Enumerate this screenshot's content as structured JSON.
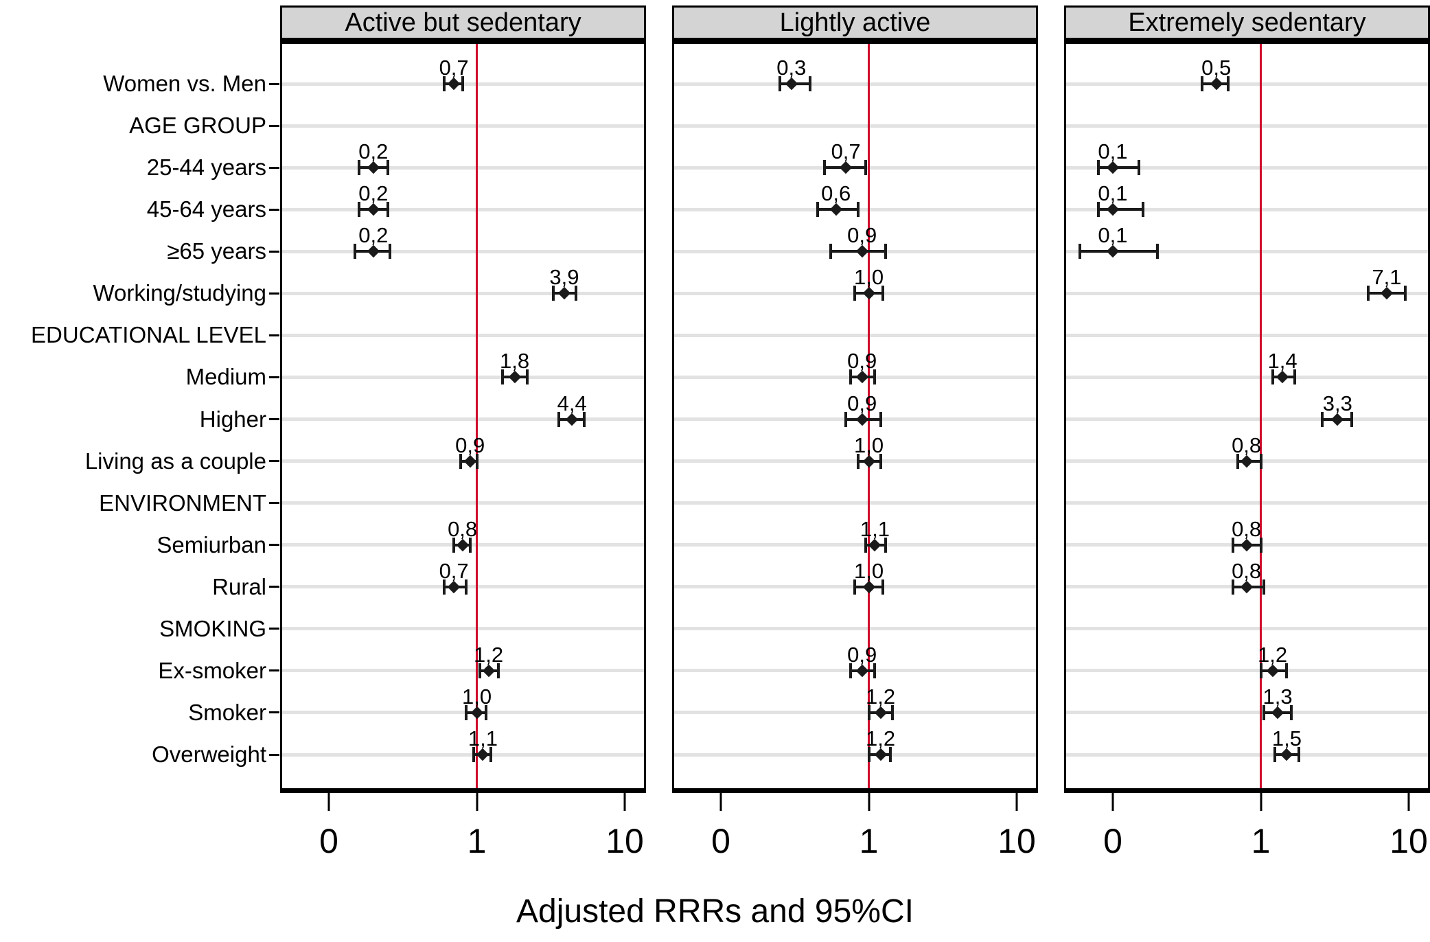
{
  "chart_data": {
    "type": "forest",
    "title": "",
    "xlabel": "Adjusted RRRs and 95%CI",
    "x_scale": "log",
    "x_ticks": [
      "0",
      "1",
      "10"
    ],
    "x_tick_values": [
      0.1,
      1,
      10
    ],
    "x_range_displayed": [
      0.05,
      13
    ],
    "reference_line": 1,
    "grid": "horizontal",
    "decimal_separator": "comma",
    "categories": [
      {
        "label": "Women vs. Men",
        "section_header": false
      },
      {
        "label": "AGE GROUP",
        "section_header": true
      },
      {
        "label": "25-44 years",
        "section_header": false
      },
      {
        "label": "45-64 years",
        "section_header": false
      },
      {
        "label": "≥65 years",
        "section_header": false
      },
      {
        "label": "Working/studying",
        "section_header": false
      },
      {
        "label": "EDUCATIONAL LEVEL",
        "section_header": true
      },
      {
        "label": "Medium",
        "section_header": false
      },
      {
        "label": "Higher",
        "section_header": false
      },
      {
        "label": "Living as a couple",
        "section_header": false
      },
      {
        "label": "ENVIRONMENT",
        "section_header": true
      },
      {
        "label": "Semiurban",
        "section_header": false
      },
      {
        "label": "Rural",
        "section_header": false
      },
      {
        "label": "SMOKING",
        "section_header": true
      },
      {
        "label": "Ex-smoker",
        "section_header": false
      },
      {
        "label": "Smoker",
        "section_header": false
      },
      {
        "label": "Overweight",
        "section_header": false
      }
    ],
    "panels": [
      {
        "title": "Active but sedentary",
        "points": [
          {
            "rrr": 0.7,
            "label": "0,7",
            "ci": [
              0.6,
              0.8
            ]
          },
          null,
          {
            "rrr": 0.2,
            "label": "0,2",
            "ci": [
              0.16,
              0.25
            ]
          },
          {
            "rrr": 0.2,
            "label": "0,2",
            "ci": [
              0.16,
              0.25
            ]
          },
          {
            "rrr": 0.2,
            "label": "0,2",
            "ci": [
              0.15,
              0.26
            ]
          },
          {
            "rrr": 3.9,
            "label": "3,9",
            "ci": [
              3.3,
              4.7
            ]
          },
          null,
          {
            "rrr": 1.8,
            "label": "1,8",
            "ci": [
              1.5,
              2.2
            ]
          },
          {
            "rrr": 4.4,
            "label": "4,4",
            "ci": [
              3.6,
              5.3
            ]
          },
          {
            "rrr": 0.9,
            "label": "0,9",
            "ci": [
              0.78,
              1.0
            ]
          },
          null,
          {
            "rrr": 0.8,
            "label": "0,8",
            "ci": [
              0.7,
              0.9
            ]
          },
          {
            "rrr": 0.7,
            "label": "0,7",
            "ci": [
              0.6,
              0.85
            ]
          },
          null,
          {
            "rrr": 1.2,
            "label": "1,2",
            "ci": [
              1.05,
              1.4
            ]
          },
          {
            "rrr": 1.0,
            "label": "1,0",
            "ci": [
              0.85,
              1.15
            ]
          },
          {
            "rrr": 1.1,
            "label": "1,1",
            "ci": [
              0.95,
              1.25
            ]
          }
        ]
      },
      {
        "title": "Lightly active",
        "points": [
          {
            "rrr": 0.3,
            "label": "0,3",
            "ci": [
              0.25,
              0.4
            ]
          },
          null,
          {
            "rrr": 0.7,
            "label": "0,7",
            "ci": [
              0.5,
              0.95
            ]
          },
          {
            "rrr": 0.6,
            "label": "0,6",
            "ci": [
              0.45,
              0.85
            ]
          },
          {
            "rrr": 0.9,
            "label": "0,9",
            "ci": [
              0.55,
              1.3
            ]
          },
          {
            "rrr": 1.0,
            "label": "1,0",
            "ci": [
              0.8,
              1.25
            ]
          },
          null,
          {
            "rrr": 0.9,
            "label": "0,9",
            "ci": [
              0.75,
              1.1
            ]
          },
          {
            "rrr": 0.9,
            "label": "0,9",
            "ci": [
              0.7,
              1.2
            ]
          },
          {
            "rrr": 1.0,
            "label": "1,0",
            "ci": [
              0.85,
              1.2
            ]
          },
          null,
          {
            "rrr": 1.1,
            "label": "1,1",
            "ci": [
              0.95,
              1.3
            ]
          },
          {
            "rrr": 1.0,
            "label": "1,0",
            "ci": [
              0.8,
              1.25
            ]
          },
          null,
          {
            "rrr": 0.9,
            "label": "0,9",
            "ci": [
              0.75,
              1.1
            ]
          },
          {
            "rrr": 1.2,
            "label": "1,2",
            "ci": [
              1.0,
              1.45
            ]
          },
          {
            "rrr": 1.2,
            "label": "1,2",
            "ci": [
              1.0,
              1.4
            ]
          }
        ]
      },
      {
        "title": "Extremely sedentary",
        "points": [
          {
            "rrr": 0.5,
            "label": "0,5",
            "ci": [
              0.4,
              0.6
            ]
          },
          null,
          {
            "rrr": 0.1,
            "label": "0,1",
            "ci": [
              0.08,
              0.15
            ]
          },
          {
            "rrr": 0.1,
            "label": "0,1",
            "ci": [
              0.08,
              0.16
            ]
          },
          {
            "rrr": 0.1,
            "label": "0,1",
            "ci": [
              0.06,
              0.2
            ]
          },
          {
            "rrr": 7.1,
            "label": "7,1",
            "ci": [
              5.3,
              9.5
            ]
          },
          null,
          {
            "rrr": 1.4,
            "label": "1,4",
            "ci": [
              1.2,
              1.7
            ]
          },
          {
            "rrr": 3.3,
            "label": "3,3",
            "ci": [
              2.6,
              4.1
            ]
          },
          {
            "rrr": 0.8,
            "label": "0,8",
            "ci": [
              0.7,
              1.0
            ]
          },
          null,
          {
            "rrr": 0.8,
            "label": "0,8",
            "ci": [
              0.65,
              1.0
            ]
          },
          {
            "rrr": 0.8,
            "label": "0,8",
            "ci": [
              0.65,
              1.05
            ]
          },
          null,
          {
            "rrr": 1.2,
            "label": "1,2",
            "ci": [
              1.0,
              1.5
            ]
          },
          {
            "rrr": 1.3,
            "label": "1,3",
            "ci": [
              1.05,
              1.6
            ]
          },
          {
            "rrr": 1.5,
            "label": "1,5",
            "ci": [
              1.25,
              1.8
            ]
          }
        ]
      }
    ]
  },
  "styles": {
    "background": "#ffffff",
    "header_bg": "#d4d4d4",
    "grid_color": "#e2e2e2",
    "reference_line_color": "#cf0a2c",
    "ink": "#000000"
  }
}
